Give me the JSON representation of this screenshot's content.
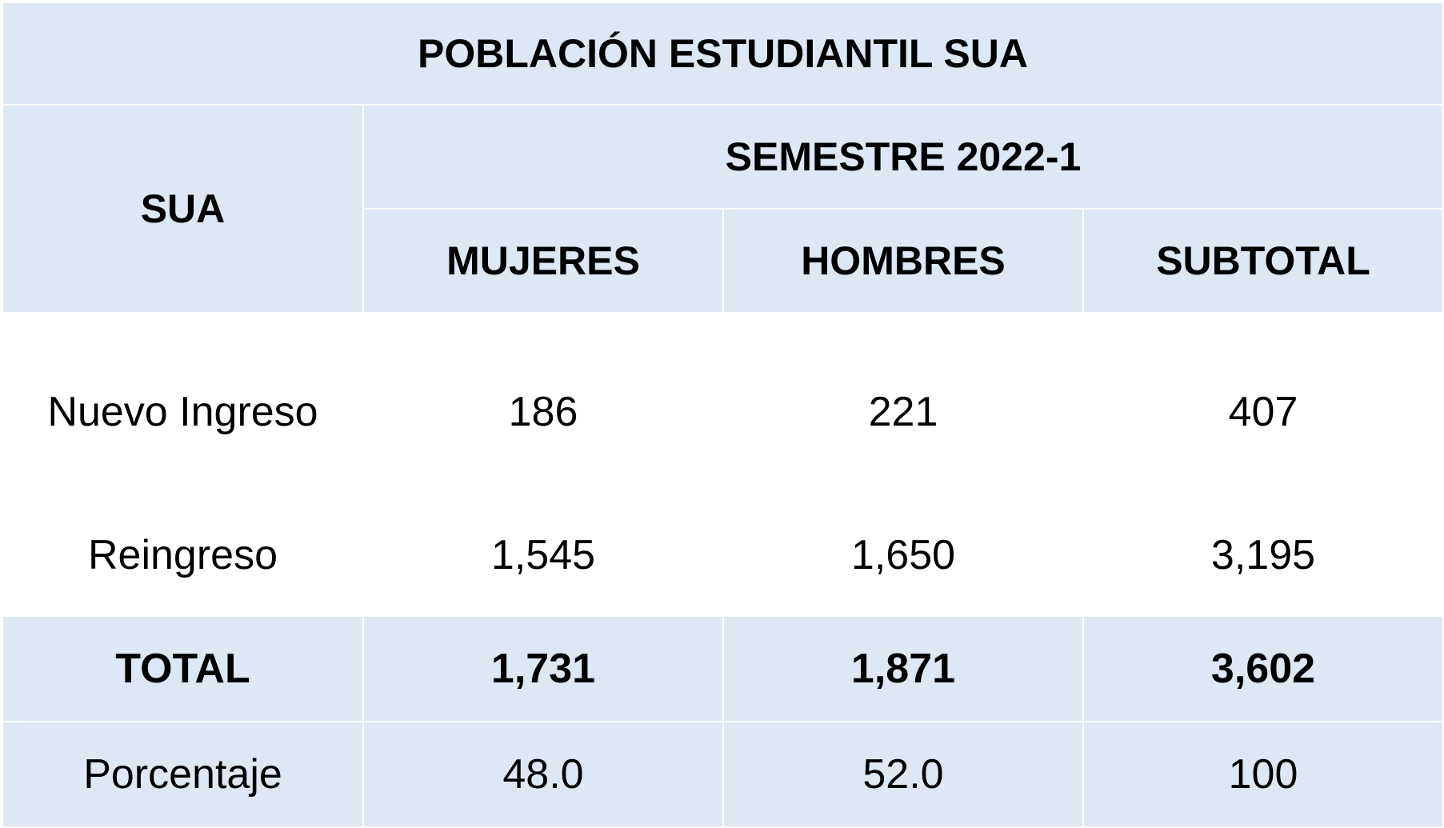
{
  "table": {
    "title": "POBLACIÓN ESTUDIANTIL SUA",
    "row_header": "SUA",
    "group_header": "SEMESTRE 2022-1",
    "columns": [
      "MUJERES",
      "HOMBRES",
      "SUBTOTAL"
    ],
    "rows": [
      [
        "Nuevo Ingreso",
        "186",
        "221",
        "407"
      ],
      [
        "Reingreso",
        "1,545",
        "1,650",
        "3,195"
      ],
      [
        "TOTAL",
        "1,731",
        "1,871",
        "3,602"
      ],
      [
        "Porcentaje",
        "48.0",
        "52.0",
        "100"
      ]
    ]
  }
}
